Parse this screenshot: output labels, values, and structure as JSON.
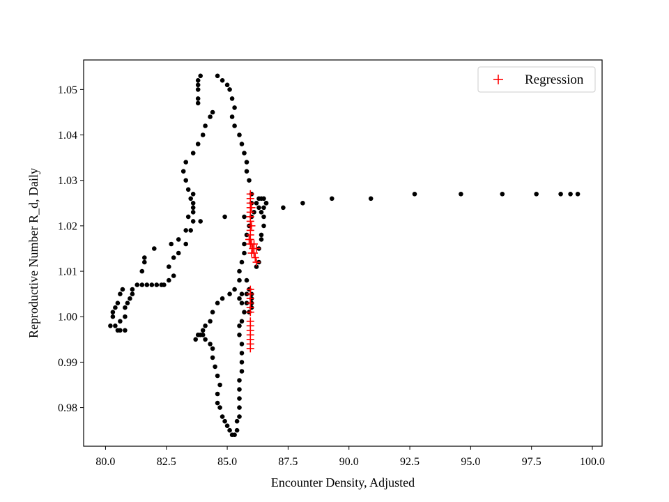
{
  "chart_data": {
    "type": "scatter",
    "xlabel": "Encounter Density, Adjusted",
    "ylabel": "Reproductive Number R_d, Daily",
    "xlim": [
      79.1,
      100.4
    ],
    "ylim": [
      0.9715,
      1.0565
    ],
    "xticks": [
      80.0,
      82.5,
      85.0,
      87.5,
      90.0,
      92.5,
      95.0,
      97.5,
      100.0
    ],
    "xtick_labels": [
      "80.0",
      "82.5",
      "85.0",
      "87.5",
      "90.0",
      "92.5",
      "95.0",
      "97.5",
      "100.0"
    ],
    "yticks": [
      0.98,
      0.99,
      1.0,
      1.01,
      1.02,
      1.03,
      1.04,
      1.05
    ],
    "ytick_labels": [
      "0.98",
      "0.99",
      "1.00",
      "1.01",
      "1.02",
      "1.03",
      "1.04",
      "1.05"
    ],
    "grid": false,
    "legend": {
      "location": "upper right",
      "entries": [
        "Regression"
      ]
    },
    "series": [
      {
        "marker": "circle",
        "color": "#000000",
        "points": [
          [
            80.2,
            0.998
          ],
          [
            80.3,
            1.0
          ],
          [
            80.4,
            0.998
          ],
          [
            80.5,
            0.997
          ],
          [
            80.6,
            0.997
          ],
          [
            80.8,
            0.997
          ],
          [
            80.6,
            0.999
          ],
          [
            80.8,
            1.0
          ],
          [
            80.8,
            1.002
          ],
          [
            80.9,
            1.003
          ],
          [
            81.0,
            1.004
          ],
          [
            81.1,
            1.005
          ],
          [
            81.1,
            1.006
          ],
          [
            81.3,
            1.007
          ],
          [
            81.5,
            1.007
          ],
          [
            81.7,
            1.007
          ],
          [
            80.3,
            1.001
          ],
          [
            80.4,
            1.002
          ],
          [
            80.5,
            1.003
          ],
          [
            80.6,
            1.005
          ],
          [
            80.7,
            1.006
          ],
          [
            81.9,
            1.007
          ],
          [
            82.1,
            1.007
          ],
          [
            82.3,
            1.007
          ],
          [
            82.4,
            1.007
          ],
          [
            82.6,
            1.008
          ],
          [
            82.8,
            1.009
          ],
          [
            81.5,
            1.01
          ],
          [
            81.6,
            1.012
          ],
          [
            81.6,
            1.013
          ],
          [
            82.0,
            1.015
          ],
          [
            82.6,
            1.011
          ],
          [
            82.8,
            1.013
          ],
          [
            83.0,
            1.014
          ],
          [
            83.3,
            1.016
          ],
          [
            83.5,
            1.019
          ],
          [
            83.6,
            1.021
          ],
          [
            83.6,
            1.024
          ],
          [
            83.5,
            1.026
          ],
          [
            83.4,
            1.028
          ],
          [
            83.3,
            1.03
          ],
          [
            83.2,
            1.032
          ],
          [
            83.3,
            1.034
          ],
          [
            83.6,
            1.036
          ],
          [
            83.8,
            1.038
          ],
          [
            84.0,
            1.04
          ],
          [
            84.1,
            1.042
          ],
          [
            84.3,
            1.044
          ],
          [
            84.4,
            1.045
          ],
          [
            82.7,
            1.016
          ],
          [
            83.0,
            1.017
          ],
          [
            83.3,
            1.019
          ],
          [
            83.4,
            1.022
          ],
          [
            83.6,
            1.023
          ],
          [
            83.6,
            1.025
          ],
          [
            83.6,
            1.027
          ],
          [
            83.9,
            1.021
          ],
          [
            83.8,
            1.047
          ],
          [
            83.8,
            1.048
          ],
          [
            83.8,
            1.05
          ],
          [
            83.8,
            1.051
          ],
          [
            83.8,
            1.052
          ],
          [
            83.9,
            1.053
          ],
          [
            84.6,
            1.053
          ],
          [
            84.8,
            1.052
          ],
          [
            85.0,
            1.051
          ],
          [
            85.1,
            1.05
          ],
          [
            85.2,
            1.048
          ],
          [
            85.3,
            1.046
          ],
          [
            85.2,
            1.044
          ],
          [
            85.3,
            1.042
          ],
          [
            85.5,
            1.04
          ],
          [
            85.6,
            1.038
          ],
          [
            85.7,
            1.036
          ],
          [
            85.8,
            1.034
          ],
          [
            85.8,
            1.032
          ],
          [
            85.9,
            1.03
          ],
          [
            86.0,
            1.027
          ],
          [
            86.0,
            1.025
          ],
          [
            86.0,
            1.022
          ],
          [
            85.9,
            1.02
          ],
          [
            85.8,
            1.018
          ],
          [
            85.7,
            1.016
          ],
          [
            85.7,
            1.014
          ],
          [
            85.6,
            1.012
          ],
          [
            85.5,
            1.01
          ],
          [
            85.5,
            1.008
          ],
          [
            85.3,
            1.006
          ],
          [
            85.1,
            1.005
          ],
          [
            84.8,
            1.004
          ],
          [
            84.6,
            1.003
          ],
          [
            84.4,
            1.001
          ],
          [
            84.3,
            0.999
          ],
          [
            84.1,
            0.998
          ],
          [
            84.0,
            0.997
          ],
          [
            83.9,
            0.996
          ],
          [
            83.8,
            0.996
          ],
          [
            83.7,
            0.995
          ],
          [
            84.0,
            0.996
          ],
          [
            84.1,
            0.995
          ],
          [
            84.3,
            0.994
          ],
          [
            84.4,
            0.993
          ],
          [
            84.4,
            0.991
          ],
          [
            84.5,
            0.989
          ],
          [
            84.6,
            0.987
          ],
          [
            84.7,
            0.985
          ],
          [
            84.6,
            0.983
          ],
          [
            84.6,
            0.981
          ],
          [
            84.7,
            0.98
          ],
          [
            84.8,
            0.978
          ],
          [
            84.9,
            0.977
          ],
          [
            85.0,
            0.976
          ],
          [
            85.1,
            0.975
          ],
          [
            85.2,
            0.974
          ],
          [
            85.3,
            0.974
          ],
          [
            85.4,
            0.975
          ],
          [
            85.4,
            0.977
          ],
          [
            85.5,
            0.978
          ],
          [
            85.5,
            0.98
          ],
          [
            85.5,
            0.982
          ],
          [
            85.5,
            0.984
          ],
          [
            85.5,
            0.986
          ],
          [
            85.6,
            0.988
          ],
          [
            85.6,
            0.99
          ],
          [
            85.6,
            0.992
          ],
          [
            85.6,
            0.994
          ],
          [
            85.5,
            0.996
          ],
          [
            85.5,
            0.998
          ],
          [
            85.6,
            0.999
          ],
          [
            85.7,
            1.001
          ],
          [
            85.9,
            1.001
          ],
          [
            86.0,
            1.002
          ],
          [
            86.0,
            1.003
          ],
          [
            86.0,
            1.004
          ],
          [
            86.0,
            1.005
          ],
          [
            85.8,
            1.003
          ],
          [
            85.6,
            1.003
          ],
          [
            85.5,
            1.004
          ],
          [
            85.6,
            1.005
          ],
          [
            85.8,
            1.005
          ],
          [
            85.9,
            1.006
          ],
          [
            85.8,
            1.008
          ],
          [
            86.1,
            1.023
          ],
          [
            86.2,
            1.025
          ],
          [
            86.3,
            1.026
          ],
          [
            86.4,
            1.026
          ],
          [
            86.5,
            1.026
          ],
          [
            86.6,
            1.025
          ],
          [
            86.5,
            1.024
          ],
          [
            86.4,
            1.023
          ],
          [
            86.3,
            1.024
          ],
          [
            86.5,
            1.022
          ],
          [
            86.5,
            1.02
          ],
          [
            86.4,
            1.018
          ],
          [
            86.4,
            1.017
          ],
          [
            86.3,
            1.015
          ],
          [
            86.3,
            1.012
          ],
          [
            86.2,
            1.011
          ],
          [
            86.6,
            1.025
          ],
          [
            87.3,
            1.024
          ],
          [
            88.1,
            1.025
          ],
          [
            89.3,
            1.026
          ],
          [
            90.9,
            1.026
          ],
          [
            92.7,
            1.027
          ],
          [
            94.6,
            1.027
          ],
          [
            96.3,
            1.027
          ],
          [
            97.7,
            1.027
          ],
          [
            98.7,
            1.027
          ],
          [
            99.1,
            1.027
          ],
          [
            99.4,
            1.027
          ],
          [
            85.7,
            1.022
          ],
          [
            84.9,
            1.022
          ]
        ]
      },
      {
        "name": "Regression",
        "marker": "plus",
        "color": "#ff0000",
        "points": [
          [
            85.95,
            1.027
          ],
          [
            85.95,
            1.026
          ],
          [
            85.95,
            1.025
          ],
          [
            85.95,
            1.024
          ],
          [
            85.95,
            1.023
          ],
          [
            85.95,
            1.022
          ],
          [
            85.95,
            1.021
          ],
          [
            85.95,
            1.019
          ],
          [
            85.95,
            1.018
          ],
          [
            85.95,
            1.017
          ],
          [
            85.95,
            1.016
          ],
          [
            86.0,
            1.016
          ],
          [
            86.05,
            1.015
          ],
          [
            86.1,
            1.016
          ],
          [
            86.0,
            1.014
          ],
          [
            86.1,
            1.014
          ],
          [
            86.15,
            1.013
          ],
          [
            86.2,
            1.012
          ],
          [
            86.2,
            1.015
          ],
          [
            85.95,
            1.006
          ],
          [
            85.95,
            1.005
          ],
          [
            85.95,
            1.004
          ],
          [
            85.95,
            1.003
          ],
          [
            85.95,
            1.002
          ],
          [
            85.95,
            1.001
          ],
          [
            85.95,
            0.999
          ],
          [
            85.95,
            0.998
          ],
          [
            85.95,
            0.997
          ],
          [
            85.95,
            0.996
          ],
          [
            85.95,
            0.995
          ],
          [
            85.95,
            0.994
          ],
          [
            85.95,
            0.993
          ],
          [
            86.0,
            1.024
          ],
          [
            86.0,
            1.02
          ],
          [
            85.9,
            1.017
          ]
        ]
      }
    ]
  }
}
